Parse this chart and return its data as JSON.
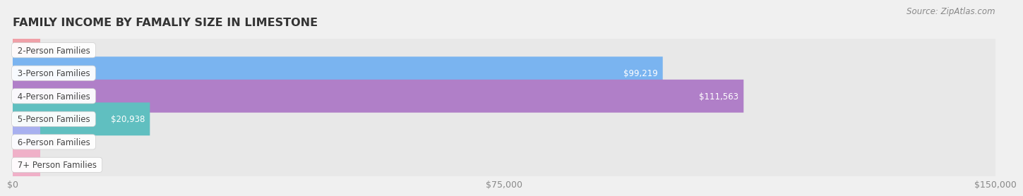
{
  "title": "FAMILY INCOME BY FAMALIY SIZE IN LIMESTONE",
  "source": "Source: ZipAtlas.com",
  "categories": [
    "2-Person Families",
    "3-Person Families",
    "4-Person Families",
    "5-Person Families",
    "6-Person Families",
    "7+ Person Families"
  ],
  "values": [
    0,
    99219,
    111563,
    20938,
    0,
    0
  ],
  "bar_colors": [
    "#f0a0a8",
    "#7ab4f0",
    "#b07fc8",
    "#60bfc0",
    "#a8b0f0",
    "#f0b0c8"
  ],
  "xlim": [
    0,
    150000
  ],
  "xticks": [
    0,
    75000,
    150000
  ],
  "xticklabels": [
    "$0",
    "$75,000",
    "$150,000"
  ],
  "background_color": "#f0f0f0",
  "row_bg_color": "#e8e8e8",
  "title_fontsize": 11.5,
  "tick_fontsize": 9,
  "cat_fontsize": 8.5,
  "val_fontsize": 8.5,
  "source_fontsize": 8.5
}
